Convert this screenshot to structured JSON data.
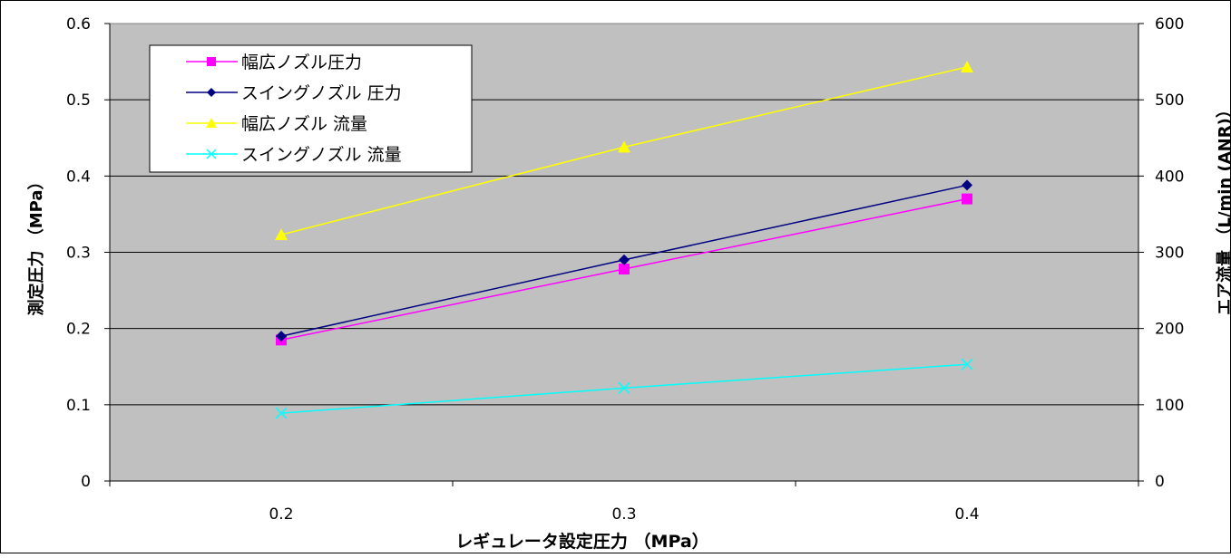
{
  "chart_data": {
    "type": "line",
    "x": [
      0.2,
      0.3,
      0.4
    ],
    "xlabel": "レギュレータ設定圧力 （MPa）",
    "ylabel": "測定圧力 （MPa）",
    "y2label": "エア流量 （L/min (ANR)）",
    "xlim": [
      0.15,
      0.45
    ],
    "ylim": [
      0,
      0.6
    ],
    "y2lim": [
      0,
      600
    ],
    "x_ticks": [
      "0.2",
      "0.3",
      "0.4"
    ],
    "y_ticks": [
      "0",
      "0.1",
      "0.2",
      "0.3",
      "0.4",
      "0.5",
      "0.6"
    ],
    "y2_ticks": [
      "0",
      "100",
      "200",
      "300",
      "400",
      "500",
      "600"
    ],
    "grid": true,
    "legend_position": "top-left",
    "plot_background": "#c0c0c0",
    "series": [
      {
        "name": "幅広ノズル圧力",
        "axis": "left",
        "values": [
          0.185,
          0.278,
          0.37
        ],
        "color": "#ff00ff",
        "marker": "square"
      },
      {
        "name": "スイングノズル 圧力",
        "axis": "left",
        "values": [
          0.19,
          0.29,
          0.388
        ],
        "color": "#000080",
        "marker": "diamond"
      },
      {
        "name": "幅広ノズル 流量",
        "axis": "right",
        "values": [
          323,
          438,
          543
        ],
        "color": "#ffff00",
        "marker": "triangle"
      },
      {
        "name": "スイングノズル 流量",
        "axis": "right",
        "values": [
          89,
          122,
          153
        ],
        "color": "#00ffff",
        "marker": "x"
      }
    ]
  }
}
